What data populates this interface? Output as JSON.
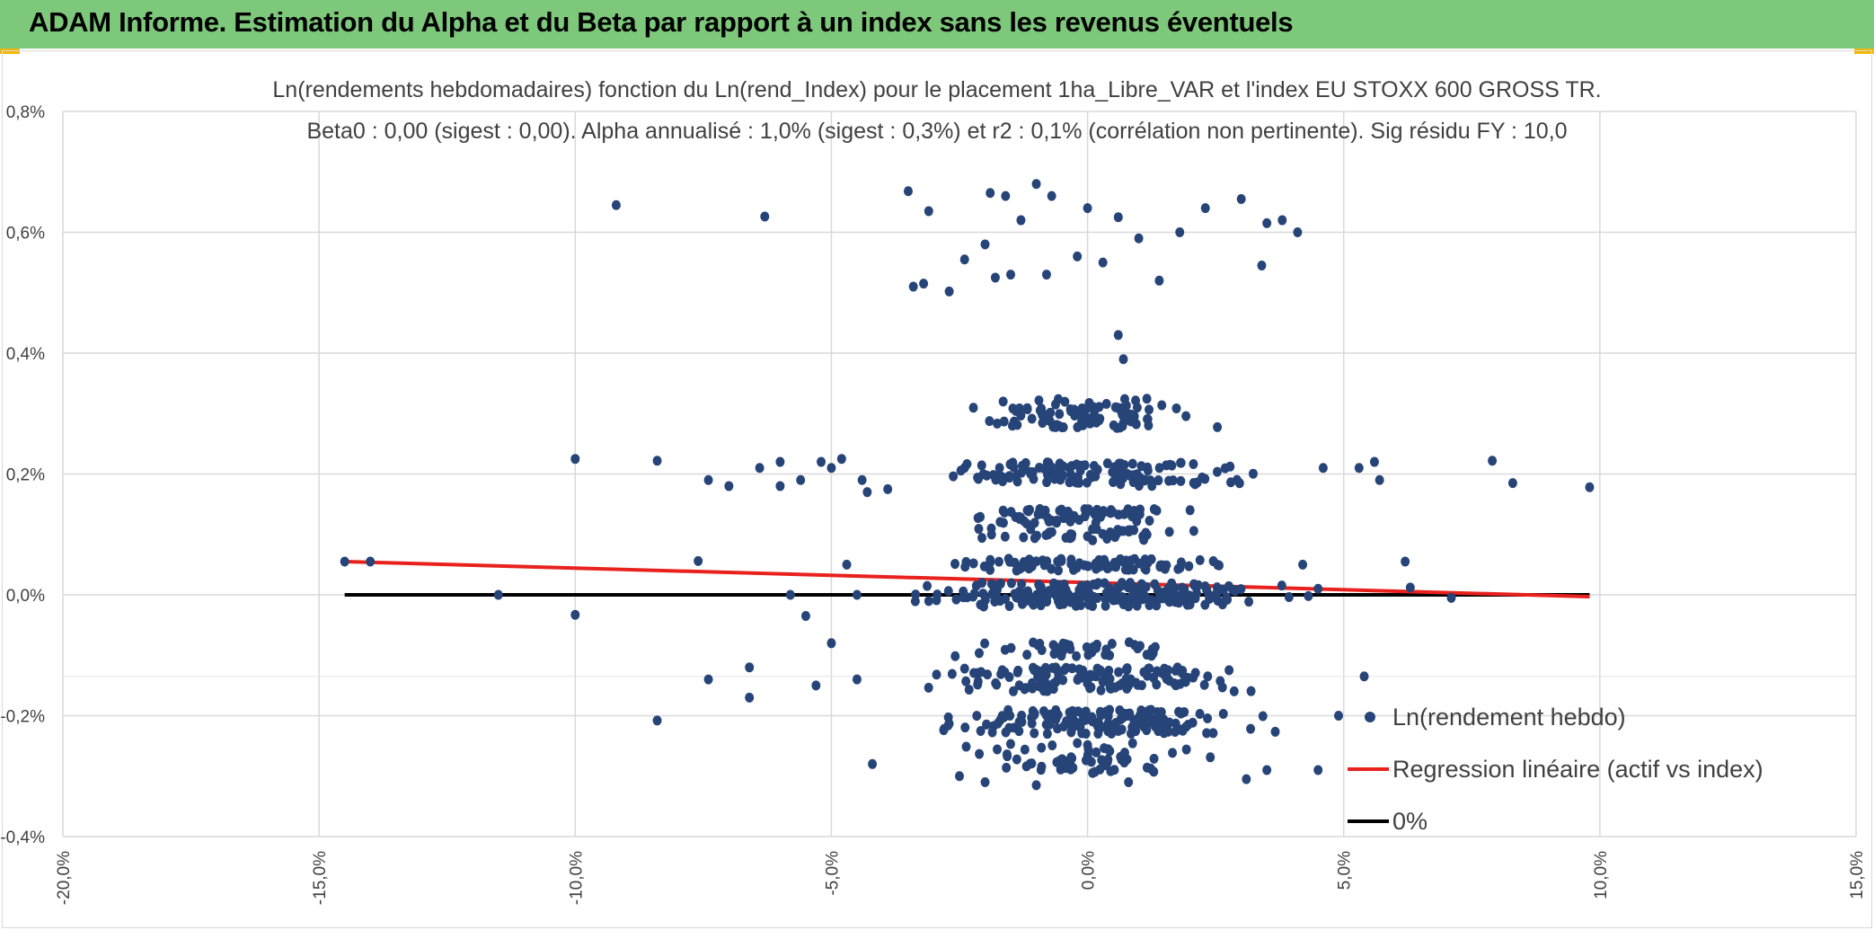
{
  "header": {
    "title": "ADAM Informe. Estimation du Alpha et du Beta par rapport à un index sans les revenus éventuels",
    "background_color": "#7dc87a",
    "accent_color": "#f2b705"
  },
  "chart_data": {
    "type": "scatter",
    "title": "Ln(rendements hebdomadaires) fonction du Ln(rend_Index) pour le placement 1ha_Libre_VAR et l'index EU STOXX 600 GROSS TR.",
    "subtitle": "Beta0 : 0,00 (sigest : 0,00). Alpha annualisé : 1,0% (sigest : 0,3%) et r2 : 0,1% (corrélation non pertinente). Sig résidu FY : 10,0",
    "xlabel": "",
    "ylabel": "",
    "xlim": [
      -20,
      15
    ],
    "ylim": [
      -0.4,
      0.8
    ],
    "x_ticks": [
      -20,
      -15,
      -10,
      -5,
      0,
      5,
      10,
      15
    ],
    "x_tick_labels": [
      "-20,0%",
      "-15,0%",
      "-10,0%",
      "-5,0%",
      "0,0%",
      "5,0%",
      "10,0%",
      "15,0%"
    ],
    "y_ticks": [
      -0.4,
      -0.2,
      0.0,
      0.2,
      0.4,
      0.6,
      0.8
    ],
    "y_tick_labels": [
      "-0,4%",
      "-0,2%",
      "0,0%",
      "0,2%",
      "0,4%",
      "0,6%",
      "0,8%"
    ],
    "grid": true,
    "legend_position": "bottom-right",
    "series": [
      {
        "name": "Ln(rendement hebdo)",
        "kind": "scatter",
        "color": "#264478",
        "points": [
          [
            -14.5,
            0.055
          ],
          [
            -14.0,
            0.055
          ],
          [
            -11.5,
            0.0
          ],
          [
            -10.0,
            0.225
          ],
          [
            -10.0,
            -0.033
          ],
          [
            -9.2,
            0.645
          ],
          [
            -8.4,
            0.222
          ],
          [
            -8.4,
            -0.208
          ],
          [
            -7.6,
            0.056
          ],
          [
            -7.4,
            0.19
          ],
          [
            -7.4,
            -0.14
          ],
          [
            -7.0,
            0.18
          ],
          [
            -6.6,
            -0.12
          ],
          [
            -6.6,
            -0.17
          ],
          [
            -6.4,
            0.21
          ],
          [
            -6.3,
            0.626
          ],
          [
            -6.0,
            0.22
          ],
          [
            -6.0,
            0.18
          ],
          [
            -5.8,
            0.0
          ],
          [
            -5.6,
            0.19
          ],
          [
            -5.5,
            -0.035
          ],
          [
            -5.3,
            -0.15
          ],
          [
            -5.2,
            0.22
          ],
          [
            -5.0,
            0.21
          ],
          [
            -5.0,
            -0.08
          ],
          [
            -4.8,
            0.225
          ],
          [
            -4.7,
            0.05
          ],
          [
            -4.5,
            0.0
          ],
          [
            -4.5,
            -0.14
          ],
          [
            -4.4,
            0.19
          ],
          [
            -4.3,
            0.17
          ],
          [
            -4.2,
            -0.28
          ],
          [
            -3.9,
            0.175
          ],
          [
            -3.5,
            0.668
          ],
          [
            -3.4,
            0.51
          ],
          [
            -3.2,
            0.515
          ],
          [
            -3.1,
            0.635
          ],
          [
            -2.7,
            0.502
          ],
          [
            -2.4,
            0.555
          ],
          [
            -2.0,
            0.58
          ],
          [
            -1.9,
            0.665
          ],
          [
            -1.8,
            0.525
          ],
          [
            -1.6,
            0.66
          ],
          [
            -1.5,
            0.53
          ],
          [
            -1.3,
            0.62
          ],
          [
            -1.0,
            0.68
          ],
          [
            -0.8,
            0.53
          ],
          [
            -0.7,
            0.66
          ],
          [
            -0.2,
            0.56
          ],
          [
            0.0,
            0.64
          ],
          [
            0.3,
            0.55
          ],
          [
            0.6,
            0.625
          ],
          [
            0.6,
            0.43
          ],
          [
            0.7,
            0.39
          ],
          [
            1.0,
            0.59
          ],
          [
            1.4,
            0.52
          ],
          [
            1.8,
            0.6
          ],
          [
            2.3,
            0.64
          ],
          [
            3.0,
            0.655
          ],
          [
            3.4,
            0.545
          ],
          [
            3.5,
            0.615
          ],
          [
            3.8,
            0.62
          ],
          [
            4.1,
            0.6
          ],
          [
            4.6,
            0.21
          ],
          [
            4.9,
            -0.2
          ],
          [
            5.3,
            0.21
          ],
          [
            5.4,
            -0.135
          ],
          [
            5.6,
            0.22
          ],
          [
            5.7,
            0.19
          ],
          [
            6.2,
            0.055
          ],
          [
            6.3,
            0.012
          ],
          [
            7.1,
            -0.005
          ],
          [
            7.9,
            0.222
          ],
          [
            8.3,
            0.185
          ],
          [
            9.8,
            0.178
          ],
          [
            4.5,
            -0.29
          ],
          [
            4.5,
            0.01
          ],
          [
            4.2,
            0.05
          ],
          [
            3.5,
            -0.29
          ],
          [
            3.1,
            -0.305
          ],
          [
            -2.5,
            -0.3
          ],
          [
            -2.0,
            -0.31
          ],
          [
            -1.0,
            -0.315
          ],
          [
            0.8,
            -0.31
          ]
        ]
      },
      {
        "name": "Regression linéaire (actif vs index)",
        "kind": "line",
        "color": "#e8211d",
        "points": [
          [
            -14.5,
            0.055
          ],
          [
            9.8,
            -0.003
          ]
        ]
      },
      {
        "name": "0%",
        "kind": "line",
        "color": "#000000",
        "points": [
          [
            -14.5,
            0.0
          ],
          [
            9.8,
            0.0
          ]
        ]
      }
    ]
  }
}
